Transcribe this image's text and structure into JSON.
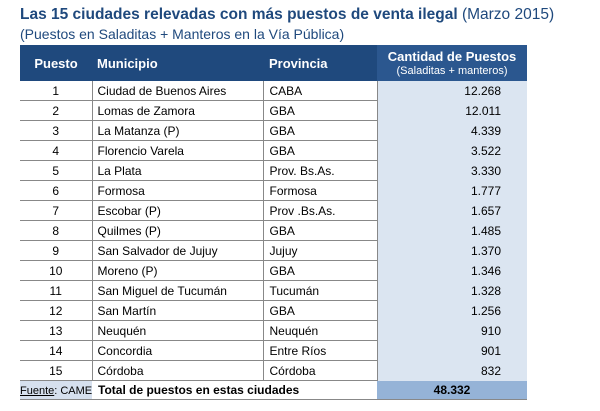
{
  "title": {
    "bold": "Las 15 ciudades relevadas con más puestos de venta ilegal",
    "date": "(Marzo 2015)"
  },
  "subtitle": "(Puestos en Saladitas + Manteros en la Vía Pública)",
  "chart_data": {
    "type": "table",
    "columns": [
      "Puesto",
      "Municipio",
      "Provincia",
      "Cantidad de Puestos"
    ],
    "column_note": "(Saladitas + manteros)",
    "rows": [
      {
        "puesto": "1",
        "municipio": "Ciudad de Buenos Aires",
        "provincia": "CABA",
        "cantidad": "12.268"
      },
      {
        "puesto": "2",
        "municipio": "Lomas de Zamora",
        "provincia": "GBA",
        "cantidad": "12.011"
      },
      {
        "puesto": "3",
        "municipio": "La Matanza (P)",
        "provincia": "GBA",
        "cantidad": "4.339"
      },
      {
        "puesto": "4",
        "municipio": "Florencio Varela",
        "provincia": "GBA",
        "cantidad": "3.522"
      },
      {
        "puesto": "5",
        "municipio": "La Plata",
        "provincia": "Prov. Bs.As.",
        "cantidad": "3.330"
      },
      {
        "puesto": "6",
        "municipio": "Formosa",
        "provincia": "Formosa",
        "cantidad": "1.777"
      },
      {
        "puesto": "7",
        "municipio": "Escobar (P)",
        "provincia": "Prov .Bs.As.",
        "cantidad": "1.657"
      },
      {
        "puesto": "8",
        "municipio": "Quilmes (P)",
        "provincia": "GBA",
        "cantidad": "1.485"
      },
      {
        "puesto": "9",
        "municipio": "San Salvador de Jujuy",
        "provincia": "Jujuy",
        "cantidad": "1.370"
      },
      {
        "puesto": "10",
        "municipio": "Moreno (P)",
        "provincia": "GBA",
        "cantidad": "1.346"
      },
      {
        "puesto": "11",
        "municipio": "San Miguel de Tucumán",
        "provincia": "Tucumán",
        "cantidad": "1.328"
      },
      {
        "puesto": "12",
        "municipio": "San Martín",
        "provincia": "GBA",
        "cantidad": "1.256"
      },
      {
        "puesto": "13",
        "municipio": "Neuquén",
        "provincia": "Neuquén",
        "cantidad": "910"
      },
      {
        "puesto": "14",
        "municipio": "Concordia",
        "provincia": "Entre Ríos",
        "cantidad": "901"
      },
      {
        "puesto": "15",
        "municipio": "Córdoba",
        "provincia": "Córdoba",
        "cantidad": "832"
      }
    ],
    "total": {
      "label": "Total de puestos en estas ciudades",
      "value": "48.332"
    }
  },
  "source": {
    "label": "Fuente",
    "value": ": CAME"
  },
  "colors": {
    "header": "#1f497d",
    "value_column": "#dbe5f1",
    "total_value": "#95b3d7",
    "title": "#1f497d"
  }
}
